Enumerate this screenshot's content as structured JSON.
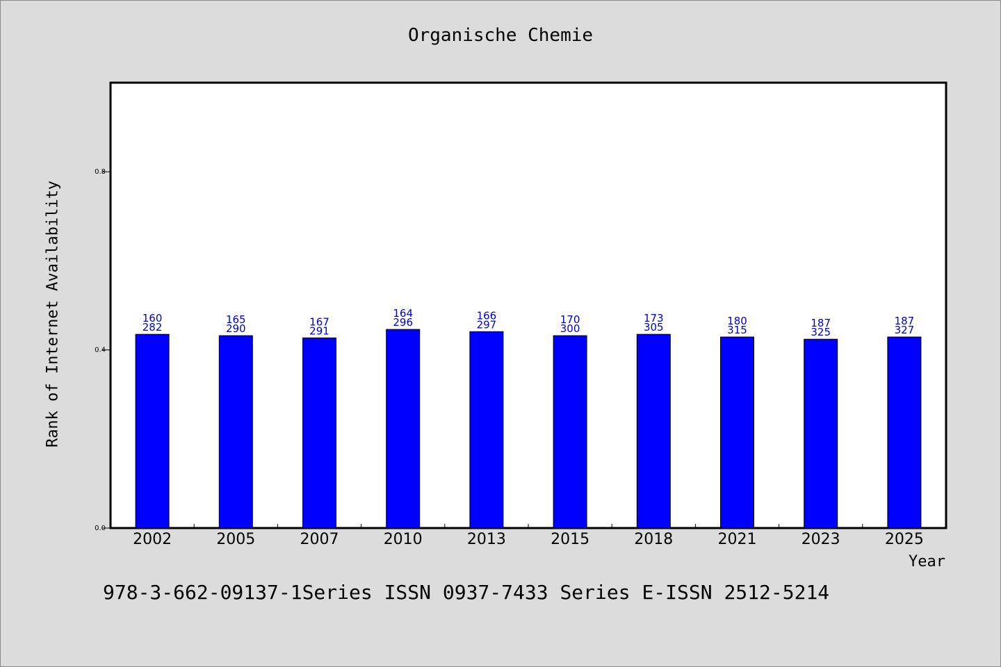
{
  "chart_data": {
    "type": "bar",
    "title": "Organische Chemie",
    "xlabel": "Year",
    "ylabel": "Rank of Internet Availability",
    "categories": [
      "2002",
      "2005",
      "2007",
      "2010",
      "2013",
      "2015",
      "2018",
      "2021",
      "2023",
      "2025"
    ],
    "values": [
      0.435,
      0.432,
      0.427,
      0.446,
      0.441,
      0.432,
      0.435,
      0.429,
      0.424,
      0.429
    ],
    "bar_labels_top": [
      "160",
      "165",
      "167",
      "164",
      "166",
      "170",
      "173",
      "180",
      "187",
      "187"
    ],
    "bar_labels_bottom": [
      "282",
      "290",
      "291",
      "296",
      "297",
      "300",
      "305",
      "315",
      "325",
      "327"
    ],
    "ylim": [
      0,
      1.0
    ],
    "yticks": [
      0.0,
      0.4,
      0.8
    ],
    "ytick_labels": [
      "0.0",
      "0.4",
      "0.8"
    ],
    "grid": false,
    "colors": {
      "bar": "#0000ff",
      "bar_label": "#0000cc",
      "background": "#dcdcdc",
      "plot_bg": "#ffffff"
    }
  },
  "footer": "978-3-662-09137-1Series ISSN 0937-7433 Series E-ISSN 2512-5214"
}
